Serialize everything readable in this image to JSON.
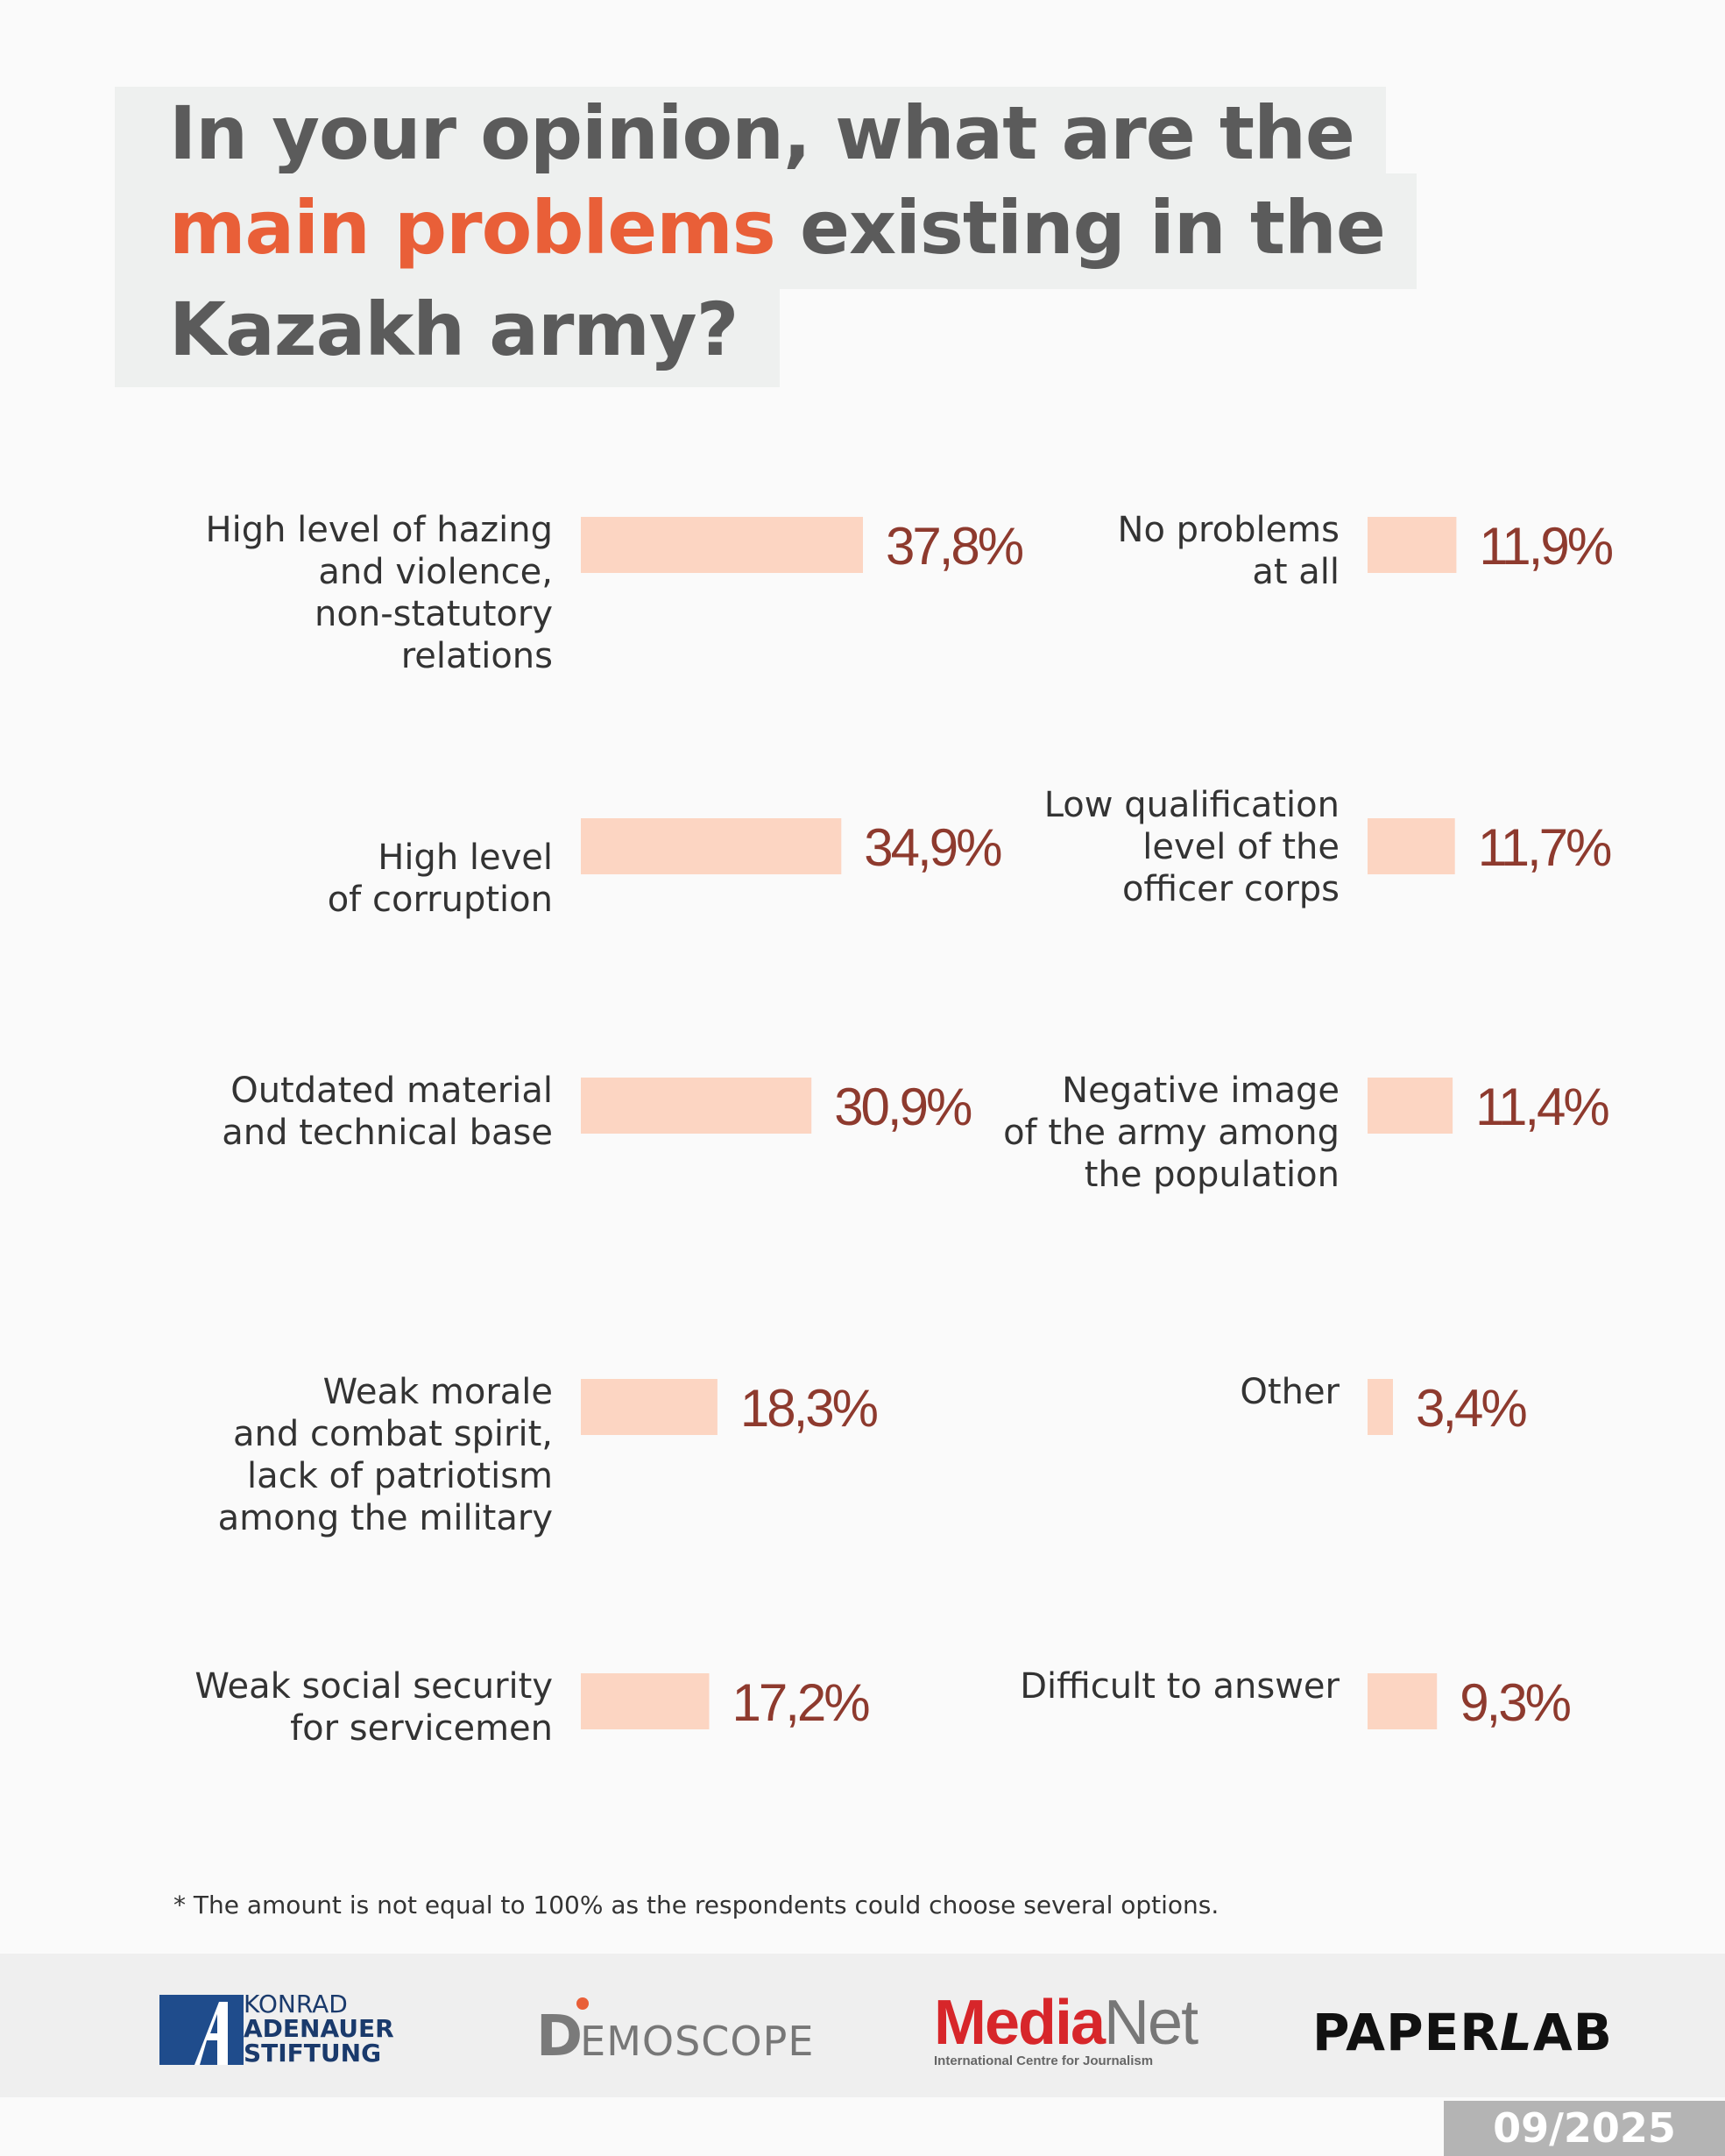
{
  "title": {
    "line1": "In your opinion, what are the",
    "line2_highlight": "main problems",
    "line2_rest": " existing in the",
    "line3": "Kazakh army?"
  },
  "chart_data": {
    "type": "bar",
    "orientation": "horizontal",
    "title": "In your opinion, what are the main problems existing in the Kazakh army?",
    "unit": "%",
    "xlim": [
      0,
      40
    ],
    "series": [
      {
        "name": "left column",
        "items": [
          {
            "label": [
              "High level of hazing",
              "and violence,",
              "non-statutory",
              "relations"
            ],
            "value": 37.8,
            "display": "37,8%"
          },
          {
            "label": [
              "High level",
              "of corruption"
            ],
            "value": 34.9,
            "display": "34,9%"
          },
          {
            "label": [
              "Outdated material",
              "and technical base"
            ],
            "value": 30.9,
            "display": "30,9%"
          },
          {
            "label": [
              "Weak morale",
              "and combat spirit,",
              "lack of patriotism",
              "among the military"
            ],
            "value": 18.3,
            "display": "18,3%"
          },
          {
            "label": [
              "Weak social security",
              "for servicemen"
            ],
            "value": 17.2,
            "display": "17,2%"
          }
        ]
      },
      {
        "name": "right column",
        "items": [
          {
            "label": [
              "No problems",
              "at all"
            ],
            "value": 11.9,
            "display": "11,9%"
          },
          {
            "label": [
              "Low qualification",
              "level of the",
              "officer corps"
            ],
            "value": 11.7,
            "display": "11,7%"
          },
          {
            "label": [
              "Negative image",
              "of the army among",
              "the population"
            ],
            "value": 11.4,
            "display": "11,4%"
          },
          {
            "label": [
              "Other"
            ],
            "value": 3.4,
            "display": "3,4%"
          },
          {
            "label": [
              "Difficult to answer"
            ],
            "value": 9.3,
            "display": "9,3%"
          }
        ]
      }
    ],
    "colors": {
      "bar": "#fcd5c2",
      "value": "#8e3a2e",
      "label": "#333333"
    }
  },
  "footnote": "* The amount is not equal to 100% as the respondents could choose several options.",
  "footer": {
    "kas_line1": "KONRAD",
    "kas_line2": "ADENAUER",
    "kas_line3": "STIFTUNG",
    "demoscope_initial": "D",
    "demoscope_rest": "EMOSCOPE",
    "medianet_media": "Media",
    "medianet_net": "Net",
    "medianet_sub": "International Centre for Journalism",
    "paperlab_paper": "PAPER",
    "paperlab_l": "L",
    "paperlab_ab": "AB"
  },
  "date": "09/2025"
}
